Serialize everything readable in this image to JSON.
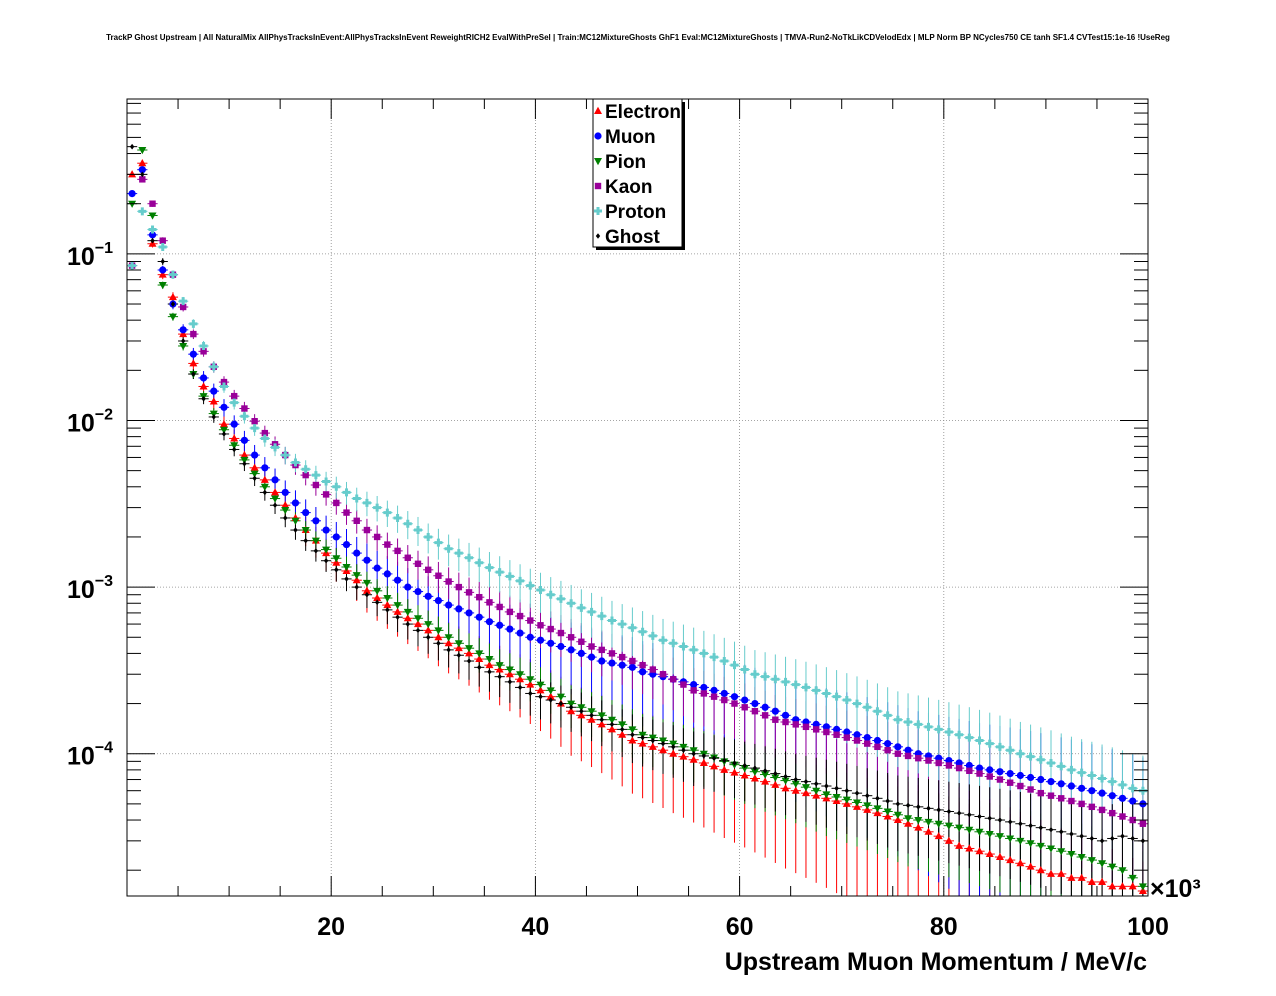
{
  "chart_data": {
    "type": "scatter",
    "title": "TrackP Ghost Upstream | All NaturalMix AllPhysTracksInEvent:AllPhysTracksInEvent ReweightRICH2 EvalWithPreSel | Train:MC12MixtureGhosts GhF1 Eval:MC12MixtureGhosts | TMVA-Run2-NoTkLikCDVelodEdx | MLP Norm BP NCycles750 CE tanh SF1.4 CVTest15:1e-16 !UseReg",
    "xlabel": "Upstream Muon Momentum / MeV/c",
    "x_multiplier": "×10³",
    "xlim": [
      0,
      100000
    ],
    "ylim": [
      1.4e-05,
      0.85
    ],
    "yscale": "log",
    "grid": true,
    "legend_position": "top-center",
    "x_ticks": [
      "20",
      "40",
      "60",
      "80",
      "100"
    ],
    "y_ticks": [
      {
        "base": "10",
        "exp": "−1",
        "value": 0.1
      },
      {
        "base": "10",
        "exp": "−2",
        "value": 0.01
      },
      {
        "base": "10",
        "exp": "−3",
        "value": 0.001
      },
      {
        "base": "10",
        "exp": "−4",
        "value": 0.0001
      }
    ],
    "series": [
      {
        "name": "Electron",
        "color": "#ff0000",
        "marker": "triangle-up",
        "values": [
          0.3,
          0.35,
          0.115,
          0.075,
          0.055,
          0.033,
          0.022,
          0.016,
          0.013,
          0.0095,
          0.0078,
          0.0062,
          0.0052,
          0.0044,
          0.0037,
          0.0031,
          0.0026,
          0.0022,
          0.0019,
          0.0016,
          0.0014,
          0.00125,
          0.0011,
          0.00095,
          0.00086,
          0.00078,
          0.00071,
          0.00065,
          0.0006,
          0.00055,
          0.0005,
          0.00046,
          0.00043,
          0.0004,
          0.00037,
          0.00034,
          0.00032,
          0.0003,
          0.00028,
          0.00026,
          0.00024,
          0.00022,
          0.0002,
          0.00018,
          0.00017,
          0.00016,
          0.00015,
          0.00014,
          0.00013,
          0.00012,
          0.000115,
          0.00011,
          0.000105,
          0.0001,
          9.6e-05,
          9.2e-05,
          8.8e-05,
          8.4e-05,
          8e-05,
          7.7e-05,
          7.4e-05,
          7.1e-05,
          6.8e-05,
          6.5e-05,
          6.2e-05,
          6e-05,
          5.8e-05,
          5.6e-05,
          5.4e-05,
          5.2e-05,
          5e-05,
          4.8e-05,
          4.6e-05,
          4.4e-05,
          4.2e-05,
          4e-05,
          3.8e-05,
          3.6e-05,
          3.4e-05,
          3.2e-05,
          3e-05,
          2.8e-05,
          2.7e-05,
          2.6e-05,
          2.5e-05,
          2.4e-05,
          2.3e-05,
          2.2e-05,
          2.1e-05,
          2e-05,
          1.9e-05,
          1.9e-05,
          1.8e-05,
          1.8e-05,
          1.7e-05,
          1.7e-05,
          1.6e-05,
          1.6e-05,
          1.6e-05,
          1.5e-05
        ]
      },
      {
        "name": "Muon",
        "color": "#0000ff",
        "marker": "circle",
        "values": [
          0.23,
          0.32,
          0.13,
          0.08,
          0.05,
          0.035,
          0.025,
          0.018,
          0.015,
          0.012,
          0.0095,
          0.0076,
          0.0062,
          0.0052,
          0.0044,
          0.0037,
          0.0032,
          0.0028,
          0.0025,
          0.0022,
          0.002,
          0.0018,
          0.0016,
          0.00145,
          0.0013,
          0.0012,
          0.0011,
          0.001,
          0.00094,
          0.00088,
          0.00083,
          0.00078,
          0.00074,
          0.0007,
          0.00066,
          0.00062,
          0.00059,
          0.00056,
          0.00053,
          0.0005,
          0.00048,
          0.00046,
          0.00044,
          0.00042,
          0.0004,
          0.00038,
          0.00036,
          0.00035,
          0.00034,
          0.00033,
          0.00031,
          0.0003,
          0.00029,
          0.00028,
          0.00027,
          0.00026,
          0.00025,
          0.00024,
          0.00023,
          0.00022,
          0.00021,
          0.0002,
          0.00019,
          0.00018,
          0.00017,
          0.00016,
          0.000155,
          0.00015,
          0.000145,
          0.00014,
          0.000135,
          0.00013,
          0.000125,
          0.00012,
          0.000115,
          0.00011,
          0.000105,
          0.0001,
          9.7e-05,
          9.4e-05,
          9.1e-05,
          8.8e-05,
          8.5e-05,
          8.2e-05,
          8e-05,
          7.8e-05,
          7.6e-05,
          7.4e-05,
          7.2e-05,
          7e-05,
          6.8e-05,
          6.6e-05,
          6.4e-05,
          6.2e-05,
          6e-05,
          5.8e-05,
          5.6e-05,
          5.4e-05,
          5.2e-05,
          5e-05
        ]
      },
      {
        "name": "Pion",
        "color": "#008000",
        "marker": "triangle-down",
        "values": [
          0.2,
          0.42,
          0.17,
          0.065,
          0.042,
          0.028,
          0.019,
          0.014,
          0.011,
          0.0088,
          0.0071,
          0.0058,
          0.0048,
          0.004,
          0.0034,
          0.0029,
          0.0025,
          0.0022,
          0.0019,
          0.00168,
          0.00149,
          0.00132,
          0.00118,
          0.00106,
          0.00095,
          0.00086,
          0.00078,
          0.00071,
          0.00065,
          0.0006,
          0.00055,
          0.0005,
          0.00046,
          0.00043,
          0.0004,
          0.00037,
          0.00034,
          0.00032,
          0.0003,
          0.00028,
          0.00026,
          0.00024,
          0.00022,
          0.0002,
          0.00019,
          0.00018,
          0.00017,
          0.00016,
          0.00015,
          0.00014,
          0.00013,
          0.000125,
          0.00012,
          0.000115,
          0.00011,
          0.000105,
          0.0001,
          9.5e-05,
          9e-05,
          8.6e-05,
          8.2e-05,
          7.8e-05,
          7.5e-05,
          7.2e-05,
          6.9e-05,
          6.6e-05,
          6.3e-05,
          6e-05,
          5.7e-05,
          5.5e-05,
          5.3e-05,
          5.1e-05,
          4.9e-05,
          4.7e-05,
          4.5e-05,
          4.3e-05,
          4.1e-05,
          4e-05,
          3.9e-05,
          3.8e-05,
          3.7e-05,
          3.6e-05,
          3.5e-05,
          3.4e-05,
          3.3e-05,
          3.2e-05,
          3.1e-05,
          3e-05,
          2.9e-05,
          2.8e-05,
          2.7e-05,
          2.6e-05,
          2.5e-05,
          2.4e-05,
          2.3e-05,
          2.2e-05,
          2.1e-05,
          2e-05,
          1.8e-05,
          1.6e-05
        ]
      },
      {
        "name": "Kaon",
        "color": "#990099",
        "marker": "square",
        "values": [
          0.085,
          0.28,
          0.2,
          0.12,
          0.075,
          0.048,
          0.033,
          0.026,
          0.021,
          0.017,
          0.014,
          0.0118,
          0.0099,
          0.0084,
          0.0072,
          0.0062,
          0.0054,
          0.0047,
          0.0041,
          0.0036,
          0.0032,
          0.0028,
          0.0025,
          0.0022,
          0.002,
          0.0018,
          0.00165,
          0.0015,
          0.00138,
          0.00127,
          0.00117,
          0.00108,
          0.001,
          0.00093,
          0.00087,
          0.00081,
          0.00076,
          0.00071,
          0.00067,
          0.00063,
          0.00059,
          0.00056,
          0.00053,
          0.0005,
          0.00047,
          0.00044,
          0.00042,
          0.0004,
          0.00038,
          0.00036,
          0.00034,
          0.00032,
          0.0003,
          0.00028,
          0.00026,
          0.00024,
          0.00023,
          0.00022,
          0.00021,
          0.0002,
          0.00019,
          0.00018,
          0.00017,
          0.00016,
          0.000155,
          0.00015,
          0.000145,
          0.00014,
          0.000135,
          0.00013,
          0.000125,
          0.00012,
          0.000115,
          0.00011,
          0.000105,
          0.0001,
          9.7e-05,
          9.4e-05,
          9.1e-05,
          8.8e-05,
          8.5e-05,
          8.2e-05,
          7.9e-05,
          7.6e-05,
          7.3e-05,
          7e-05,
          6.7e-05,
          6.4e-05,
          6.1e-05,
          5.8e-05,
          5.6e-05,
          5.4e-05,
          5.2e-05,
          5e-05,
          4.8e-05,
          4.6e-05,
          4.4e-05,
          4.2e-05,
          4e-05,
          3.8e-05
        ]
      },
      {
        "name": "Proton",
        "color": "#66cccc",
        "marker": "cross",
        "values": [
          0.085,
          0.18,
          0.14,
          0.11,
          0.075,
          0.052,
          0.038,
          0.028,
          0.021,
          0.016,
          0.0128,
          0.0106,
          0.009,
          0.0078,
          0.0069,
          0.0062,
          0.0056,
          0.0051,
          0.0047,
          0.0043,
          0.004,
          0.0037,
          0.0034,
          0.0032,
          0.003,
          0.0028,
          0.0026,
          0.0024,
          0.0022,
          0.002,
          0.00185,
          0.0017,
          0.0016,
          0.0015,
          0.0014,
          0.00131,
          0.00123,
          0.00116,
          0.00109,
          0.00102,
          0.00096,
          0.0009,
          0.00085,
          0.0008,
          0.00075,
          0.00071,
          0.00067,
          0.00063,
          0.0006,
          0.00057,
          0.00054,
          0.00051,
          0.00048,
          0.00046,
          0.00044,
          0.00042,
          0.0004,
          0.00038,
          0.00036,
          0.00034,
          0.00032,
          0.0003,
          0.00029,
          0.00028,
          0.00027,
          0.00026,
          0.00025,
          0.00024,
          0.00023,
          0.00022,
          0.00021,
          0.0002,
          0.00019,
          0.00018,
          0.00017,
          0.00016,
          0.000155,
          0.00015,
          0.000145,
          0.00014,
          0.000135,
          0.00013,
          0.000125,
          0.00012,
          0.000115,
          0.00011,
          0.000105,
          0.0001,
          9.6e-05,
          9.2e-05,
          8.8e-05,
          8.4e-05,
          8e-05,
          7.7e-05,
          7.4e-05,
          7.1e-05,
          6.8e-05,
          6.5e-05,
          6.2e-05,
          6e-05
        ]
      },
      {
        "name": "Ghost",
        "color": "#000000",
        "marker": "diamond",
        "values": [
          0.44,
          0.3,
          0.12,
          0.09,
          0.05,
          0.03,
          0.019,
          0.0135,
          0.0105,
          0.0083,
          0.0067,
          0.0055,
          0.0045,
          0.0037,
          0.0031,
          0.0026,
          0.0022,
          0.0019,
          0.00165,
          0.00144,
          0.00127,
          0.00112,
          0.001,
          0.0009,
          0.00081,
          0.00073,
          0.00066,
          0.0006,
          0.00055,
          0.0005,
          0.00046,
          0.00042,
          0.00039,
          0.00036,
          0.00033,
          0.00031,
          0.00029,
          0.00027,
          0.00025,
          0.00023,
          0.00022,
          0.00021,
          0.0002,
          0.00019,
          0.00018,
          0.00017,
          0.00016,
          0.00015,
          0.00014,
          0.00013,
          0.000125,
          0.00012,
          0.000115,
          0.00011,
          0.000105,
          0.0001,
          9.7e-05,
          9.4e-05,
          9.1e-05,
          8.8e-05,
          8.5e-05,
          8.2e-05,
          7.9e-05,
          7.6e-05,
          7.3e-05,
          7e-05,
          6.8e-05,
          6.6e-05,
          6.4e-05,
          6.2e-05,
          6e-05,
          5.8e-05,
          5.6e-05,
          5.4e-05,
          5.2e-05,
          5e-05,
          4.9e-05,
          4.8e-05,
          4.7e-05,
          4.6e-05,
          4.5e-05,
          4.4e-05,
          4.3e-05,
          4.2e-05,
          4.1e-05,
          4e-05,
          3.9e-05,
          3.8e-05,
          3.7e-05,
          3.6e-05,
          3.5e-05,
          3.4e-05,
          3.3e-05,
          3.2e-05,
          3.1e-05,
          3e-05,
          3.1e-05,
          3.2e-05,
          3.1e-05,
          3e-05
        ]
      }
    ]
  }
}
